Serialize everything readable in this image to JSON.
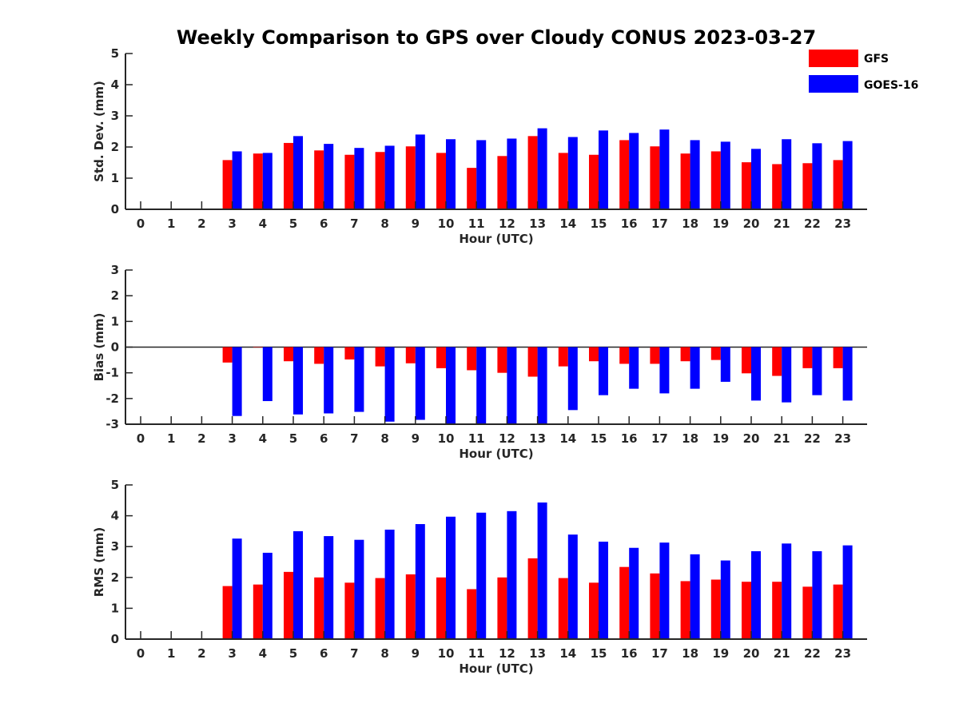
{
  "chart_data": {
    "title": "Weekly Comparison to GPS over Cloudy CONUS 2023-03-27",
    "legend": {
      "placement": "top-right",
      "entries": [
        {
          "name": "GFS",
          "color": "#ff0000"
        },
        {
          "name": "GOES-16",
          "color": "#0000ff"
        }
      ]
    },
    "panels": [
      {
        "type": "bar",
        "ylabel": "Std. Dev. (mm)",
        "xlabel": "Hour (UTC)",
        "ylim": [
          0,
          5
        ],
        "yticks": [
          "0",
          "1",
          "2",
          "3",
          "4",
          "5"
        ],
        "categories": [
          "0",
          "1",
          "2",
          "3",
          "4",
          "5",
          "6",
          "7",
          "8",
          "9",
          "10",
          "11",
          "12",
          "13",
          "14",
          "15",
          "16",
          "17",
          "18",
          "19",
          "20",
          "21",
          "22",
          "23"
        ],
        "series": [
          {
            "name": "GFS",
            "color": "#ff0000",
            "values": [
              null,
              null,
              null,
              1.58,
              1.79,
              2.13,
              1.89,
              1.75,
              1.84,
              2.02,
              1.81,
              1.33,
              1.71,
              2.35,
              1.81,
              1.75,
              2.22,
              2.02,
              1.79,
              1.86,
              1.51,
              1.45,
              1.48,
              1.58
            ]
          },
          {
            "name": "GOES-16",
            "color": "#0000ff",
            "values": [
              null,
              null,
              null,
              1.86,
              1.81,
              2.35,
              2.1,
              1.97,
              2.04,
              2.4,
              2.25,
              2.22,
              2.27,
              2.6,
              2.32,
              2.53,
              2.45,
              2.56,
              2.22,
              2.17,
              1.94,
              2.25,
              2.12,
              2.19
            ]
          }
        ]
      },
      {
        "type": "bar",
        "ylabel": "Bias (mm)",
        "xlabel": "Hour (UTC)",
        "ylim": [
          -3,
          3
        ],
        "yticks": [
          "-3",
          "-2",
          "-1",
          "0",
          "1",
          "2",
          "3"
        ],
        "categories": [
          "0",
          "1",
          "2",
          "3",
          "4",
          "5",
          "6",
          "7",
          "8",
          "9",
          "10",
          "11",
          "12",
          "13",
          "14",
          "15",
          "16",
          "17",
          "18",
          "19",
          "20",
          "21",
          "22",
          "23"
        ],
        "series": [
          {
            "name": "GFS",
            "color": "#ff0000",
            "values": [
              null,
              null,
              null,
              -0.6,
              0,
              -0.55,
              -0.65,
              -0.48,
              -0.75,
              -0.63,
              -0.82,
              -0.9,
              -1.0,
              -1.15,
              -0.75,
              -0.55,
              -0.65,
              -0.65,
              -0.55,
              -0.5,
              -1.02,
              -1.12,
              -0.82,
              -0.82
            ]
          },
          {
            "name": "GOES-16",
            "color": "#0000ff",
            "values": [
              null,
              null,
              null,
              -2.68,
              -2.1,
              -2.62,
              -2.58,
              -2.52,
              -2.9,
              -2.83,
              -3.0,
              -3.0,
              -3.0,
              -3.0,
              -2.45,
              -1.87,
              -1.62,
              -1.8,
              -1.62,
              -1.35,
              -2.08,
              -2.15,
              -1.87,
              -2.08
            ]
          }
        ]
      },
      {
        "type": "bar",
        "ylabel": "RMS (mm)",
        "xlabel": "Hour (UTC)",
        "ylim": [
          0,
          5
        ],
        "yticks": [
          "0",
          "1",
          "2",
          "3",
          "4",
          "5"
        ],
        "categories": [
          "0",
          "1",
          "2",
          "3",
          "4",
          "5",
          "6",
          "7",
          "8",
          "9",
          "10",
          "11",
          "12",
          "13",
          "14",
          "15",
          "16",
          "17",
          "18",
          "19",
          "20",
          "21",
          "22",
          "23"
        ],
        "series": [
          {
            "name": "GFS",
            "color": "#ff0000",
            "values": [
              null,
              null,
              null,
              1.72,
              1.77,
              2.18,
              2.0,
              1.83,
              1.98,
              2.1,
              2.0,
              1.62,
              2.0,
              2.62,
              1.98,
              1.83,
              2.34,
              2.13,
              1.88,
              1.93,
              1.86,
              1.86,
              1.7,
              1.77
            ]
          },
          {
            "name": "GOES-16",
            "color": "#0000ff",
            "values": [
              null,
              null,
              null,
              3.26,
              2.8,
              3.5,
              3.34,
              3.22,
              3.55,
              3.73,
              3.97,
              4.1,
              4.15,
              4.43,
              3.39,
              3.16,
              2.96,
              3.13,
              2.75,
              2.55,
              2.85,
              3.1,
              2.85,
              3.04
            ]
          }
        ]
      }
    ]
  }
}
